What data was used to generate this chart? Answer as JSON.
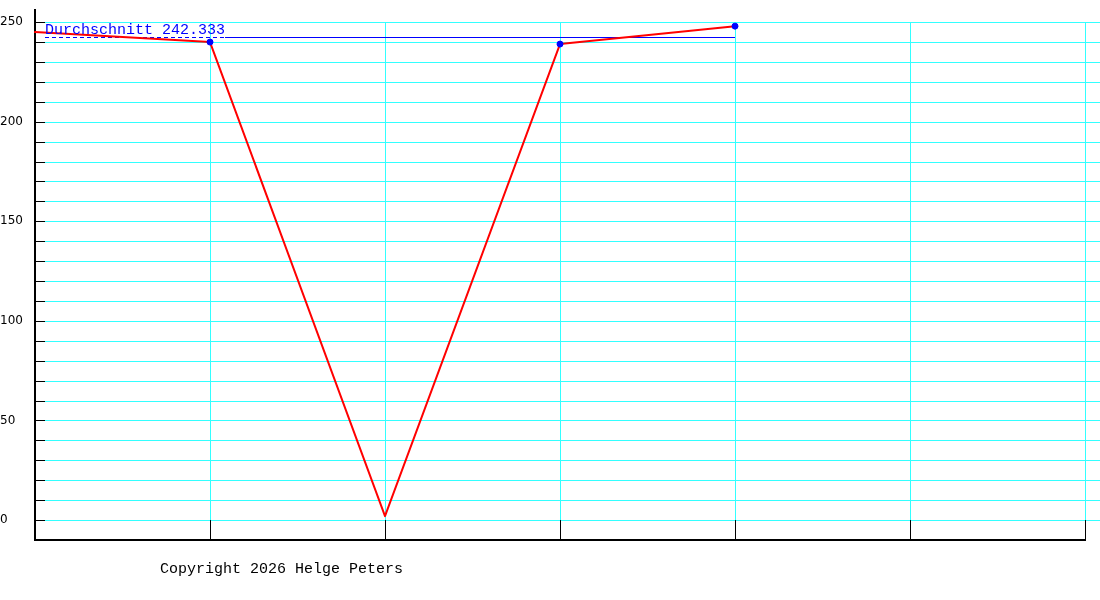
{
  "chart_data": {
    "type": "line",
    "categories": [
      null,
      null,
      null,
      null,
      null,
      null,
      null
    ],
    "series": [
      {
        "color": "#ff0000",
        "marker": "none",
        "values": [
          245,
          240,
          2,
          239,
          248,
          null,
          null
        ]
      },
      {
        "type": "scatter",
        "color": "#0000ff",
        "marker": "circle",
        "values": [
          null,
          240,
          null,
          239,
          248,
          null,
          null
        ]
      }
    ],
    "ylim": [
      -10,
      256
    ],
    "yticks": [
      0,
      {
        "value": 10,
        "label": null
      },
      {
        "value": 20,
        "label": null
      },
      {
        "value": 30,
        "label": null
      },
      {
        "value": 40,
        "label": null
      },
      50,
      {
        "value": 60,
        "label": null
      },
      {
        "value": 70,
        "label": null
      },
      {
        "value": 80,
        "label": null
      },
      {
        "value": 90,
        "label": null
      },
      100,
      {
        "value": 110,
        "label": null
      },
      {
        "value": 120,
        "label": null
      },
      {
        "value": 130,
        "label": null
      },
      {
        "value": 140,
        "label": null
      },
      150,
      {
        "value": 160,
        "label": null
      },
      {
        "value": 170,
        "label": null
      },
      {
        "value": 180,
        "label": null
      },
      {
        "value": 190,
        "label": null
      },
      200,
      {
        "value": 210,
        "label": null
      },
      {
        "value": 220,
        "label": null
      },
      {
        "value": 230,
        "label": null
      },
      {
        "value": 240,
        "label": null
      },
      250
    ],
    "grid": true,
    "tick_labels": "y",
    "ref_lines": [
      {
        "axis": "y",
        "value": 242.333,
        "label": "Durchschnitt 242.333",
        "color": "#0000ff"
      }
    ],
    "annotations": [
      "Copyright 2026 Helge Peters"
    ]
  }
}
